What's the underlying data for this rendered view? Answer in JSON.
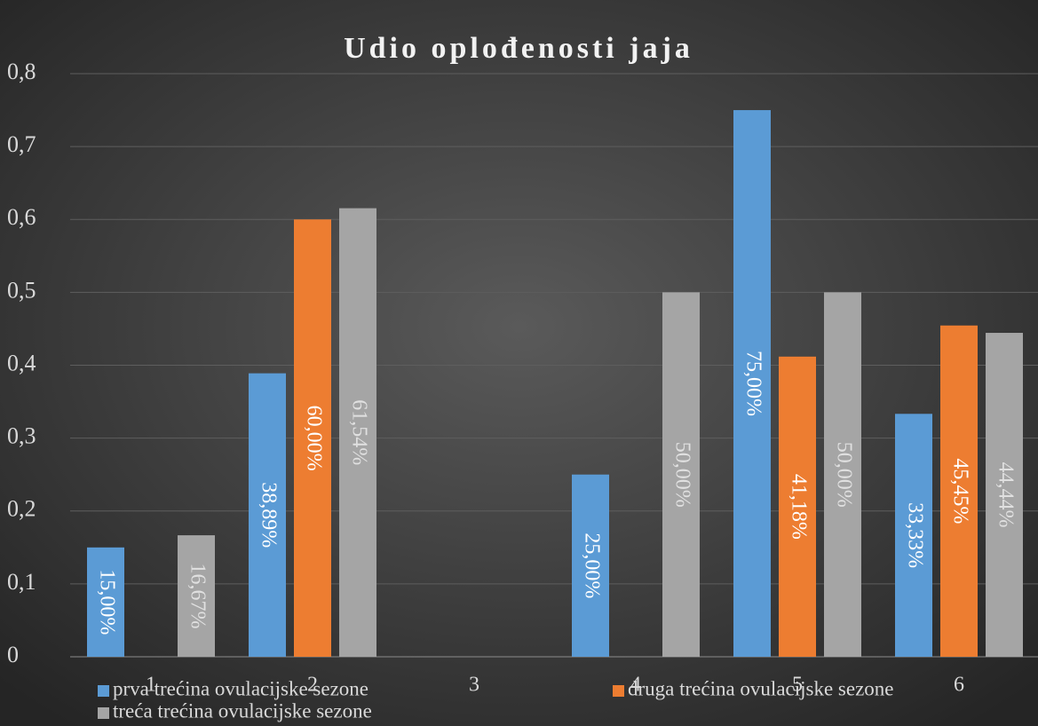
{
  "chart_data": {
    "type": "bar",
    "title": "Udio oplođenosti jaja",
    "categories": [
      "1",
      "2",
      "3",
      "4",
      "5",
      "6"
    ],
    "series": [
      {
        "name": "prva trećina ovulacijske sezone",
        "color": "#5b9bd5",
        "values": [
          0.15,
          0.3889,
          null,
          0.25,
          0.75,
          0.3333
        ],
        "value_labels": [
          "15,00%",
          "38,89%",
          null,
          "25,00%",
          "75,00%",
          "33,33%"
        ]
      },
      {
        "name": "druga trećina ovulacijske sezone",
        "color": "#ed7d31",
        "values": [
          null,
          0.6,
          null,
          null,
          0.4118,
          0.4545
        ],
        "value_labels": [
          null,
          "60,00%",
          null,
          null,
          "41,18%",
          "45,45%"
        ]
      },
      {
        "name": "treća trećina ovulacijske sezone",
        "color": "#a5a5a5",
        "values": [
          0.1667,
          0.6154,
          null,
          0.5,
          0.5,
          0.4444
        ],
        "value_labels": [
          "16,67%",
          "61,54%",
          null,
          "50,00%",
          "50,00%",
          "44,44%"
        ]
      }
    ],
    "ylim": [
      0,
      0.8
    ],
    "yticks": [
      0,
      {
        "value": 0.1,
        "label": "0,1"
      },
      {
        "value": 0.2,
        "label": "0,2"
      },
      {
        "value": 0.3,
        "label": "0,3"
      },
      {
        "value": 0.4,
        "label": "0,4"
      },
      {
        "value": 0.5,
        "label": "0,5"
      },
      {
        "value": 0.6,
        "label": "0,6"
      },
      {
        "value": 0.7,
        "label": "0,7"
      },
      {
        "value": 0.8,
        "label": "0,8"
      }
    ],
    "grid": true,
    "legend": "bottom"
  }
}
